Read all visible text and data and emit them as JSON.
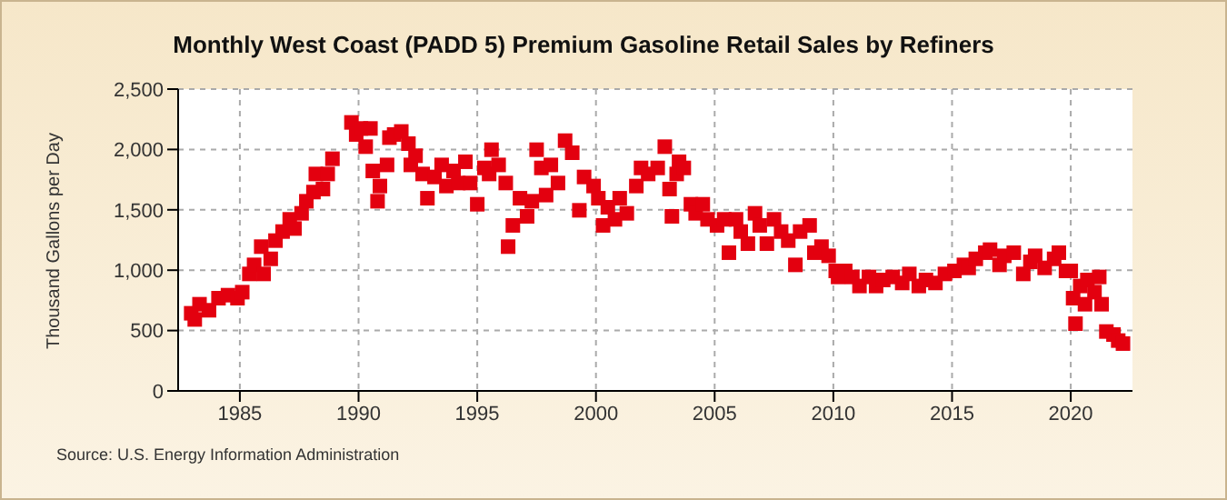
{
  "chart_data": {
    "type": "scatter",
    "title": "Monthly West Coast (PADD 5) Premium Gasoline Retail Sales by Refiners",
    "ylabel": "Thousand Gallons per Day",
    "annotations": [
      "Source: U.S. Energy Information Administration"
    ],
    "xlim": [
      1982.4,
      2022.6
    ],
    "xticks": [
      1985,
      1990,
      1995,
      2000,
      2005,
      2010,
      2015,
      2020
    ],
    "ylim": [
      0,
      2500
    ],
    "yticks": [
      0,
      500,
      {
        "value": 1000,
        "label": "1,000"
      },
      {
        "value": 1500,
        "label": "1,500"
      },
      {
        "value": 2000,
        "label": "2,000"
      },
      {
        "value": 2500,
        "label": "2,500"
      }
    ],
    "grid": true,
    "marker": "square",
    "series": [
      {
        "color": "#e3000f",
        "x": [
          1982.95,
          1983.1,
          1983.3,
          1983.7,
          1984.1,
          1984.5,
          1984.9,
          1985.1,
          1985.4,
          1985.6,
          1985.9,
          1986.0,
          1986.3,
          1986.5,
          1986.8,
          1987.1,
          1987.3,
          1987.6,
          1987.8,
          1988.1,
          1988.2,
          1988.5,
          1988.7,
          1988.9,
          1989.7,
          1989.9,
          1990.1,
          1990.3,
          1990.5,
          1990.6,
          1990.8,
          1990.9,
          1991.2,
          1991.3,
          1991.5,
          1991.8,
          1992.1,
          1992.2,
          1992.4,
          1992.7,
          1992.9,
          1993.2,
          1993.5,
          1993.7,
          1994.0,
          1994.2,
          1994.5,
          1994.7,
          1995.0,
          1995.3,
          1995.5,
          1995.6,
          1995.9,
          1996.2,
          1996.3,
          1996.5,
          1996.8,
          1997.1,
          1997.3,
          1997.5,
          1997.7,
          1997.9,
          1998.1,
          1998.4,
          1998.7,
          1999.0,
          1999.3,
          1999.5,
          1999.9,
          2000.1,
          2000.3,
          2000.5,
          2000.8,
          2001.0,
          2001.3,
          2001.7,
          2001.9,
          2002.2,
          2002.6,
          2002.9,
          2003.1,
          2003.2,
          2003.4,
          2003.5,
          2003.7,
          2004.0,
          2004.2,
          2004.5,
          2004.7,
          2005.1,
          2005.4,
          2005.6,
          2005.9,
          2006.1,
          2006.4,
          2006.7,
          2006.9,
          2007.2,
          2007.5,
          2007.8,
          2008.1,
          2008.4,
          2008.6,
          2009.0,
          2009.2,
          2009.5,
          2009.8,
          2010.1,
          2010.2,
          2010.5,
          2010.8,
          2011.1,
          2011.5,
          2011.8,
          2012.1,
          2012.5,
          2012.9,
          2013.2,
          2013.6,
          2013.9,
          2014.3,
          2014.7,
          2015.1,
          2015.5,
          2015.7,
          2016.0,
          2016.4,
          2016.6,
          2017.0,
          2017.2,
          2017.6,
          2018.0,
          2018.3,
          2018.5,
          2018.9,
          2019.3,
          2019.5,
          2019.8,
          2020.0,
          2020.1,
          2020.2,
          2020.4,
          2020.6,
          2020.7,
          2021.0,
          2021.2,
          2021.3,
          2021.5,
          2021.8,
          2022.0,
          2022.2
        ],
        "values": [
          643,
          592,
          718,
          668,
          768,
          793,
          768,
          818,
          969,
          1044,
          1195,
          969,
          1094,
          1245,
          1320,
          1421,
          1345,
          1471,
          1571,
          1647,
          1797,
          1672,
          1797,
          1923,
          2224,
          2124,
          2174,
          2023,
          2174,
          1822,
          1571,
          1697,
          1872,
          2098,
          2124,
          2149,
          2048,
          1872,
          1948,
          1797,
          1596,
          1772,
          1872,
          1697,
          1822,
          1722,
          1898,
          1722,
          1546,
          1847,
          1797,
          1998,
          1872,
          1722,
          1195,
          1371,
          1596,
          1446,
          1571,
          1998,
          1847,
          1622,
          1872,
          1722,
          2073,
          1973,
          1496,
          1772,
          1697,
          1596,
          1371,
          1521,
          1421,
          1596,
          1471,
          1697,
          1847,
          1797,
          1847,
          2023,
          1672,
          1446,
          1797,
          1898,
          1847,
          1546,
          1471,
          1546,
          1421,
          1371,
          1421,
          1145,
          1421,
          1320,
          1220,
          1471,
          1371,
          1220,
          1421,
          1320,
          1245,
          1044,
          1320,
          1371,
          1145,
          1195,
          1119,
          994,
          944,
          994,
          944,
          869,
          944,
          869,
          919,
          944,
          894,
          969,
          869,
          919,
          894,
          969,
          994,
          1044,
          1019,
          1094,
          1145,
          1170,
          1044,
          1119,
          1145,
          969,
          1069,
          1119,
          1019,
          1094,
          1145,
          994,
          994,
          768,
          557,
          869,
          718,
          919,
          818,
          944,
          718,
          492,
          467,
          417,
          392
        ]
      }
    ]
  }
}
